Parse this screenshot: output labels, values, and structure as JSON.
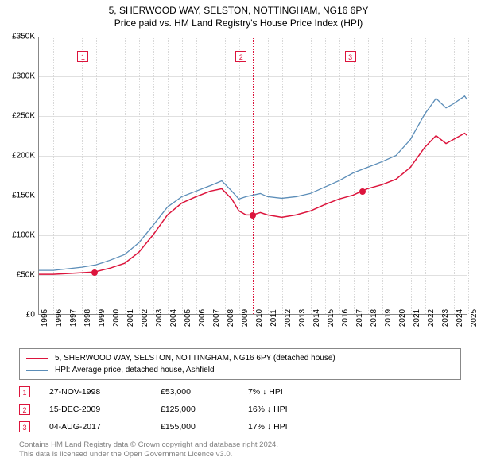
{
  "title_line1": "5, SHERWOOD WAY, SELSTON, NOTTINGHAM, NG16 6PY",
  "title_line2": "Price paid vs. HM Land Registry's House Price Index (HPI)",
  "chart": {
    "type": "line",
    "background_color": "#ffffff",
    "grid_color": "#e0e0e0",
    "grid_v_color": "#d8d8d8",
    "axis_color": "#888888",
    "x_start_year": 1995,
    "x_end_year": 2025,
    "x_ticks": [
      1995,
      1996,
      1997,
      1998,
      1999,
      2000,
      2001,
      2002,
      2003,
      2004,
      2005,
      2006,
      2007,
      2008,
      2009,
      2010,
      2011,
      2012,
      2013,
      2014,
      2015,
      2016,
      2017,
      2018,
      2019,
      2020,
      2021,
      2022,
      2023,
      2024,
      2025
    ],
    "ylim": [
      0,
      350000
    ],
    "y_ticks": [
      0,
      50000,
      100000,
      150000,
      200000,
      250000,
      300000,
      350000
    ],
    "y_tick_labels": [
      "£0",
      "£50K",
      "£100K",
      "£150K",
      "£200K",
      "£250K",
      "£300K",
      "£350K"
    ],
    "y_label_fontsize": 10,
    "x_label_fontsize": 10,
    "series": [
      {
        "name": "price_paid",
        "label": "5, SHERWOOD WAY, SELSTON, NOTTINGHAM, NG16 6PY (detached house)",
        "color": "#dc143c",
        "line_width": 1.5,
        "data": [
          [
            1995.0,
            50000
          ],
          [
            1996.0,
            50000
          ],
          [
            1997.0,
            51000
          ],
          [
            1998.0,
            52000
          ],
          [
            1998.9,
            53000
          ],
          [
            2000.0,
            58000
          ],
          [
            2001.0,
            64000
          ],
          [
            2002.0,
            78000
          ],
          [
            2003.0,
            100000
          ],
          [
            2004.0,
            125000
          ],
          [
            2005.0,
            140000
          ],
          [
            2006.0,
            148000
          ],
          [
            2007.0,
            155000
          ],
          [
            2007.8,
            158000
          ],
          [
            2008.5,
            145000
          ],
          [
            2009.0,
            130000
          ],
          [
            2009.5,
            125000
          ],
          [
            2009.96,
            125000
          ],
          [
            2010.5,
            128000
          ],
          [
            2011.0,
            125000
          ],
          [
            2012.0,
            122000
          ],
          [
            2013.0,
            125000
          ],
          [
            2014.0,
            130000
          ],
          [
            2015.0,
            138000
          ],
          [
            2016.0,
            145000
          ],
          [
            2017.0,
            150000
          ],
          [
            2017.6,
            155000
          ],
          [
            2018.0,
            158000
          ],
          [
            2019.0,
            163000
          ],
          [
            2020.0,
            170000
          ],
          [
            2021.0,
            185000
          ],
          [
            2022.0,
            210000
          ],
          [
            2022.8,
            225000
          ],
          [
            2023.5,
            215000
          ],
          [
            2024.0,
            220000
          ],
          [
            2024.8,
            228000
          ],
          [
            2025.0,
            225000
          ]
        ]
      },
      {
        "name": "hpi",
        "label": "HPI: Average price, detached house, Ashfield",
        "color": "#5b8db8",
        "line_width": 1.3,
        "data": [
          [
            1995.0,
            55000
          ],
          [
            1996.0,
            55000
          ],
          [
            1997.0,
            57000
          ],
          [
            1998.0,
            59000
          ],
          [
            1999.0,
            62000
          ],
          [
            2000.0,
            68000
          ],
          [
            2001.0,
            75000
          ],
          [
            2002.0,
            90000
          ],
          [
            2003.0,
            112000
          ],
          [
            2004.0,
            135000
          ],
          [
            2005.0,
            148000
          ],
          [
            2006.0,
            155000
          ],
          [
            2007.0,
            162000
          ],
          [
            2007.8,
            168000
          ],
          [
            2008.5,
            155000
          ],
          [
            2009.0,
            145000
          ],
          [
            2009.5,
            148000
          ],
          [
            2010.0,
            150000
          ],
          [
            2010.5,
            152000
          ],
          [
            2011.0,
            148000
          ],
          [
            2012.0,
            146000
          ],
          [
            2013.0,
            148000
          ],
          [
            2014.0,
            152000
          ],
          [
            2015.0,
            160000
          ],
          [
            2016.0,
            168000
          ],
          [
            2017.0,
            178000
          ],
          [
            2018.0,
            185000
          ],
          [
            2019.0,
            192000
          ],
          [
            2020.0,
            200000
          ],
          [
            2021.0,
            220000
          ],
          [
            2022.0,
            252000
          ],
          [
            2022.8,
            272000
          ],
          [
            2023.5,
            260000
          ],
          [
            2024.0,
            265000
          ],
          [
            2024.8,
            275000
          ],
          [
            2025.0,
            270000
          ]
        ]
      }
    ],
    "markers": [
      {
        "n": "1",
        "x": 1998.91,
        "y": 53000
      },
      {
        "n": "2",
        "x": 2009.96,
        "y": 125000
      },
      {
        "n": "3",
        "x": 2017.59,
        "y": 155000
      }
    ],
    "marker_box_color": "#dc143c",
    "marker_dot_color": "#dc143c"
  },
  "legend": {
    "border_color": "#888888",
    "items": [
      {
        "color": "#dc143c",
        "label": "5, SHERWOOD WAY, SELSTON, NOTTINGHAM, NG16 6PY (detached house)"
      },
      {
        "color": "#5b8db8",
        "label": "HPI: Average price, detached house, Ashfield"
      }
    ]
  },
  "sales": [
    {
      "n": "1",
      "date": "27-NOV-1998",
      "price": "£53,000",
      "diff": "7% ↓ HPI"
    },
    {
      "n": "2",
      "date": "15-DEC-2009",
      "price": "£125,000",
      "diff": "16% ↓ HPI"
    },
    {
      "n": "3",
      "date": "04-AUG-2017",
      "price": "£155,000",
      "diff": "17% ↓ HPI"
    }
  ],
  "footer_line1": "Contains HM Land Registry data © Crown copyright and database right 2024.",
  "footer_line2": "This data is licensed under the Open Government Licence v3.0.",
  "footer_color": "#808080"
}
